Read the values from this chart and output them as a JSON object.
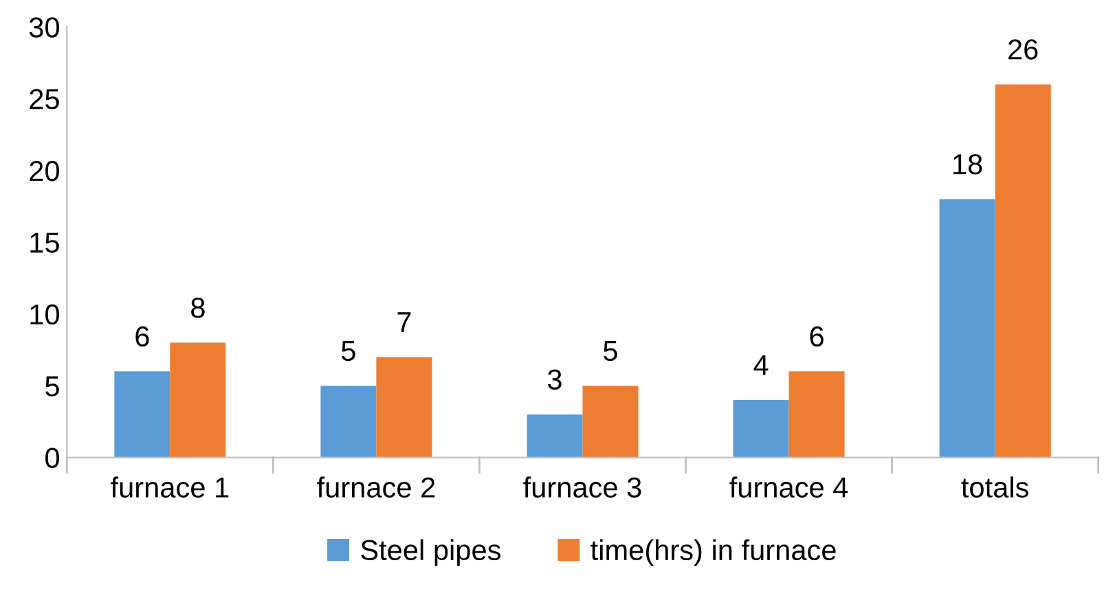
{
  "chart_data": {
    "type": "bar",
    "categories": [
      "furnace 1",
      "furnace 2",
      "furnace 3",
      "furnace 4",
      "totals"
    ],
    "series": [
      {
        "name": "Steel pipes",
        "color": "#5b9bd5",
        "values": [
          6,
          5,
          3,
          4,
          18
        ]
      },
      {
        "name": "time(hrs) in furnace",
        "color": "#ed7d31",
        "values": [
          8,
          7,
          5,
          6,
          26
        ]
      }
    ],
    "ylim": [
      0,
      30
    ],
    "yticks": [
      0,
      5,
      10,
      15,
      20,
      25,
      30
    ],
    "grid": false,
    "legend": "bottom",
    "data_labels": true
  }
}
